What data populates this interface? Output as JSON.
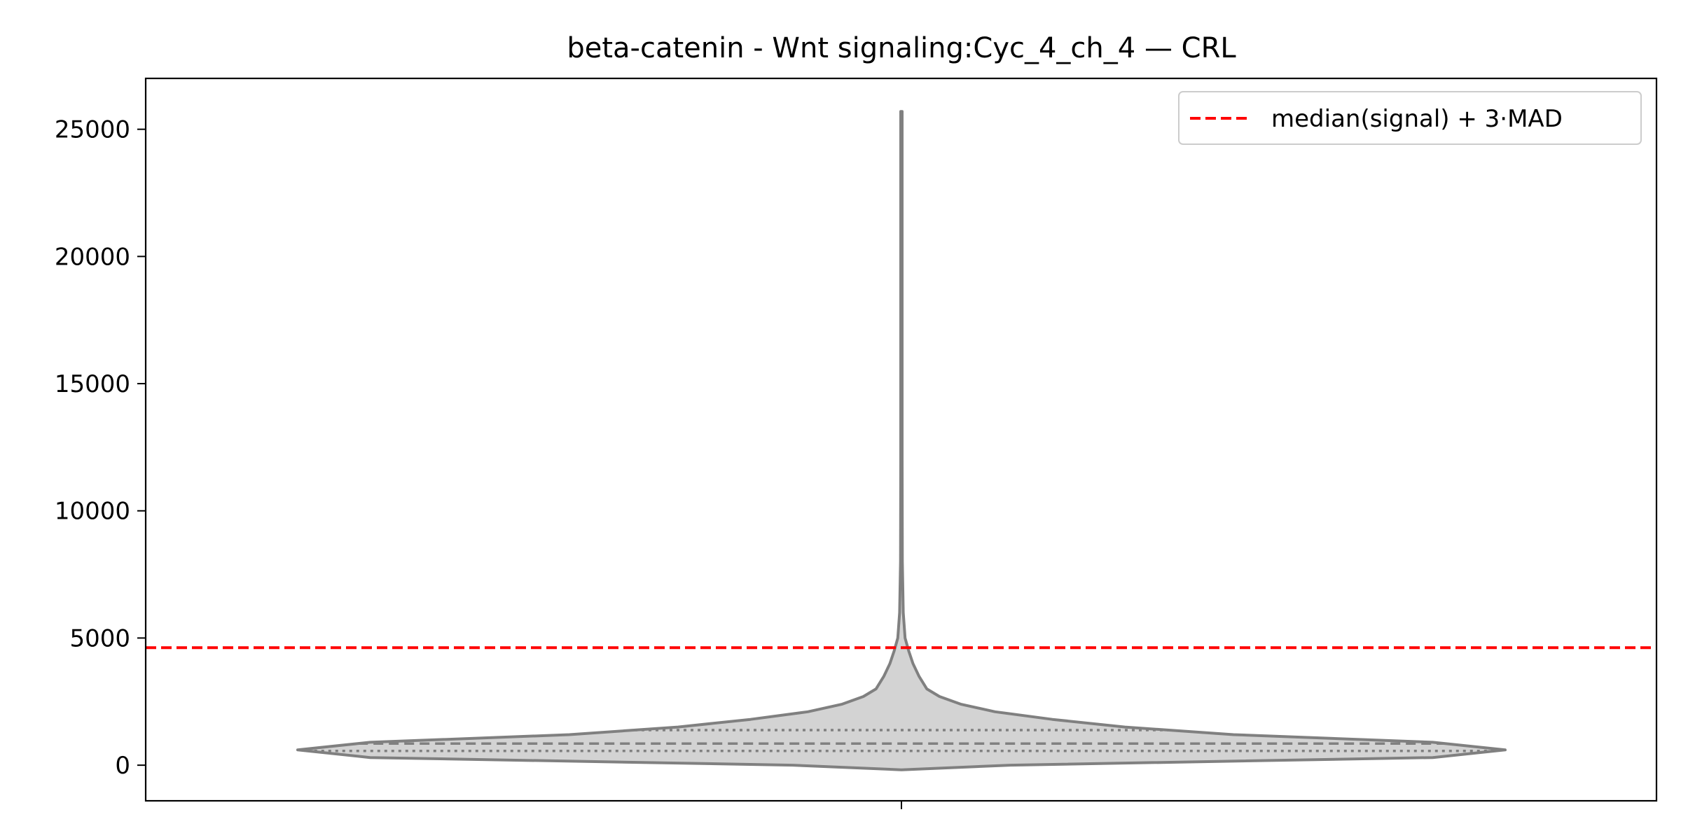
{
  "chart_data": {
    "type": "violin",
    "title": "beta-catenin - Wnt signaling:Cyc_4_ch_4 — CRL",
    "xlabel": "",
    "ylabel": "",
    "ylim": [
      -1400,
      27000
    ],
    "yticks": [
      0,
      5000,
      10000,
      15000,
      20000,
      25000
    ],
    "grid": false,
    "legend": {
      "placement": "top-right",
      "entries": [
        {
          "label": "median(signal) + 3·MAD",
          "color": "#ff0000",
          "style": "dashed"
        }
      ]
    },
    "threshold": {
      "name": "median(signal) + 3·MAD",
      "value": 4620
    },
    "violin": {
      "fill": "#d3d3d3",
      "edge": "#808080",
      "min": -180,
      "max": 25700,
      "quartiles": {
        "q1": 560,
        "median": 850,
        "q3": 1380
      },
      "profile": [
        [
          -180,
          0.0
        ],
        [
          0,
          0.18
        ],
        [
          300,
          0.88
        ],
        [
          600,
          1.0
        ],
        [
          900,
          0.88
        ],
        [
          1200,
          0.55
        ],
        [
          1500,
          0.37
        ],
        [
          1800,
          0.25
        ],
        [
          2100,
          0.155
        ],
        [
          2400,
          0.098
        ],
        [
          2700,
          0.063
        ],
        [
          3000,
          0.042
        ],
        [
          3500,
          0.029
        ],
        [
          4000,
          0.019
        ],
        [
          4500,
          0.012
        ],
        [
          5000,
          0.006
        ],
        [
          6000,
          0.003
        ],
        [
          8000,
          0.0015
        ],
        [
          12000,
          0.0012
        ],
        [
          20000,
          0.0012
        ],
        [
          25700,
          0.0012
        ]
      ]
    }
  }
}
